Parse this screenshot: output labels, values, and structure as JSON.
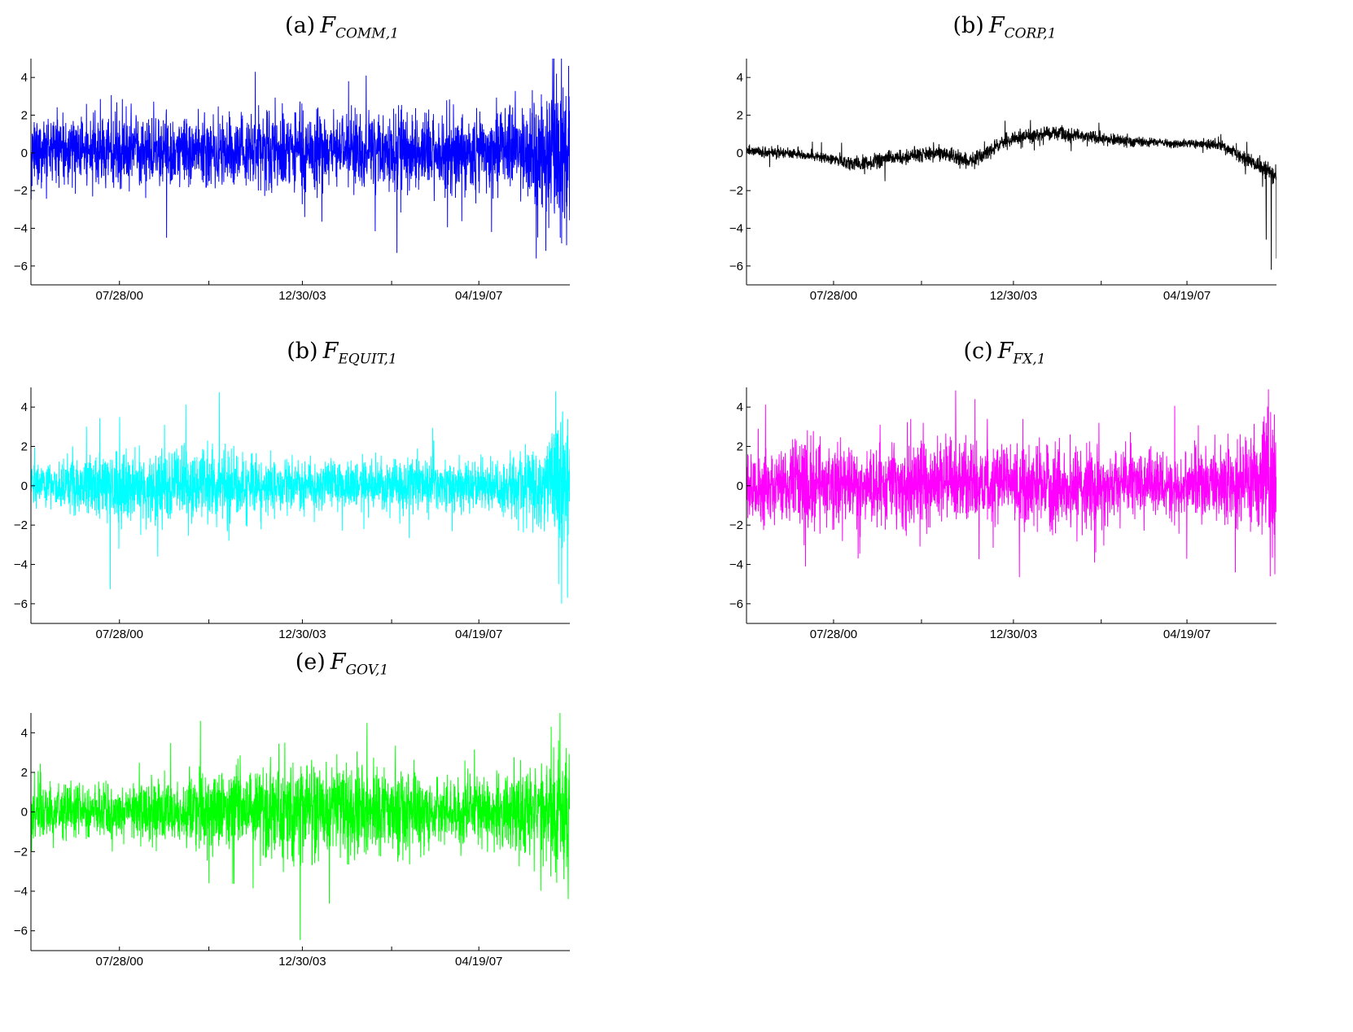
{
  "chart_data": [
    {
      "type": "line",
      "title_prefix": "(a)",
      "title_symbol": "F",
      "title_subscript": "COMM,1",
      "series_color": "#0000ff",
      "ylim": [
        -7,
        5
      ],
      "y_ticks": [
        4,
        2,
        0,
        -2,
        -4,
        -6
      ],
      "x_tick_labels": [
        "07/28/00",
        "12/30/03",
        "04/19/07"
      ],
      "x": {
        "start": "1998-12-01",
        "end": "2008-12-31",
        "unit": "date"
      },
      "profile": {
        "base": [
          0.1,
          0.1,
          0.1,
          0.1,
          0.1,
          0.1,
          0.1,
          0.1,
          0.1,
          0.1,
          0.1,
          0.1,
          0.1,
          0.1,
          0.1,
          0.1,
          0.1,
          0.1,
          0.1,
          0.1
        ],
        "noise": [
          1.0,
          0.9,
          0.9,
          0.9,
          0.9,
          0.9,
          0.95,
          1.0,
          1.0,
          1.0,
          1.0,
          1.0,
          1.0,
          1.0,
          1.0,
          1.05,
          1.1,
          1.2,
          1.7,
          2.4
        ]
      },
      "annotated_values": [
        {
          "date": "1999-12-15",
          "y": 2.6
        },
        {
          "date": "2001-06-15",
          "y": -4.5
        },
        {
          "date": "2004-01-15",
          "y": -3.4
        },
        {
          "date": "2004-11-10",
          "y": 3.8
        },
        {
          "date": "2005-03-10",
          "y": 4.1
        },
        {
          "date": "2007-07-15",
          "y": -4.2
        },
        {
          "date": "2008-05-15",
          "y": -5.6
        },
        {
          "date": "2008-07-20",
          "y": -5.2
        },
        {
          "date": "2008-10-01",
          "y": 4.2
        },
        {
          "date": "2008-11-05",
          "y": -4.8
        }
      ]
    },
    {
      "type": "line",
      "title_prefix": "(b)",
      "title_symbol": "F",
      "title_subscript": "CORP,1",
      "series_color": "#000000",
      "ylim": [
        -7,
        5
      ],
      "y_ticks": [
        4,
        2,
        0,
        -2,
        -4,
        -6
      ],
      "x_tick_labels": [
        "07/28/00",
        "12/30/03",
        "04/19/07"
      ],
      "x": {
        "start": "1998-12-01",
        "end": "2008-12-31",
        "unit": "date"
      },
      "profile": {
        "base": [
          0.1,
          0.0,
          -0.1,
          -0.3,
          -0.6,
          -0.3,
          -0.1,
          0.0,
          -0.5,
          0.4,
          0.9,
          1.1,
          0.9,
          0.7,
          0.6,
          0.5,
          0.5,
          0.4,
          -0.4,
          -1.2
        ],
        "noise": [
          0.15,
          0.15,
          0.15,
          0.15,
          0.2,
          0.2,
          0.2,
          0.2,
          0.2,
          0.2,
          0.2,
          0.2,
          0.15,
          0.15,
          0.12,
          0.12,
          0.12,
          0.15,
          0.2,
          0.25
        ]
      },
      "annotated_values": [
        {
          "date": "2001-07-20",
          "y": -1.5
        },
        {
          "date": "2003-11-01",
          "y": 1.7
        },
        {
          "date": "2005-08-15",
          "y": 1.6
        },
        {
          "date": "2007-12-10",
          "y": 1.0
        },
        {
          "date": "2008-09-25",
          "y": -1.8
        },
        {
          "date": "2008-10-20",
          "y": -4.6
        },
        {
          "date": "2008-11-25",
          "y": -6.2
        },
        {
          "date": "2008-12-31",
          "y": -5.6
        }
      ]
    },
    {
      "type": "line",
      "title_prefix": "(b)",
      "title_symbol": "F",
      "title_subscript": "EQUIT,1",
      "series_color": "#00ffff",
      "ylim": [
        -7,
        5
      ],
      "y_ticks": [
        4,
        2,
        0,
        -2,
        -4,
        -6
      ],
      "x_tick_labels": [
        "07/28/00",
        "12/30/03",
        "04/19/07"
      ],
      "x": {
        "start": "1998-12-01",
        "end": "2008-12-31",
        "unit": "date"
      },
      "profile": {
        "base": [
          0,
          0,
          0,
          0,
          0,
          0,
          0,
          0,
          0,
          0,
          0,
          0,
          0,
          0,
          0,
          0,
          0,
          0,
          0,
          0
        ],
        "noise": [
          0.6,
          0.6,
          0.8,
          0.9,
          0.9,
          0.9,
          0.9,
          0.9,
          0.8,
          0.7,
          0.6,
          0.6,
          0.6,
          0.7,
          0.65,
          0.6,
          0.6,
          0.8,
          1.0,
          2.2
        ]
      },
      "annotated_values": [
        {
          "date": "1999-12-15",
          "y": 3.0
        },
        {
          "date": "2001-06-01",
          "y": 3.1
        },
        {
          "date": "2000-12-20",
          "y": -2.5
        },
        {
          "date": "2002-08-15",
          "y": -2.8
        },
        {
          "date": "2006-06-15",
          "y": 2.3
        },
        {
          "date": "2008-09-25",
          "y": 4.8
        },
        {
          "date": "2008-10-15",
          "y": -5.0
        },
        {
          "date": "2008-11-05",
          "y": -6.0
        },
        {
          "date": "2008-12-15",
          "y": -5.7
        }
      ]
    },
    {
      "type": "line",
      "title_prefix": "(c)",
      "title_symbol": "F",
      "title_subscript": "FX,1",
      "series_color": "#ff00ff",
      "ylim": [
        -7,
        5
      ],
      "y_ticks": [
        4,
        2,
        0,
        -2,
        -4,
        -6
      ],
      "x_tick_labels": [
        "07/28/00",
        "12/30/03",
        "04/19/07"
      ],
      "x": {
        "start": "1998-12-01",
        "end": "2008-12-31",
        "unit": "date"
      },
      "profile": {
        "base": [
          0,
          0,
          0,
          0,
          0,
          0,
          0,
          0,
          0,
          0,
          0,
          0,
          0,
          0,
          0,
          0,
          0,
          0,
          0,
          0
        ],
        "noise": [
          0.9,
          0.9,
          1.1,
          1.0,
          0.95,
          1.0,
          1.05,
          1.05,
          1.05,
          1.0,
          1.0,
          1.0,
          1.0,
          0.9,
          0.85,
          0.85,
          0.9,
          0.95,
          1.2,
          1.9
        ]
      },
      "annotated_values": [
        {
          "date": "1999-02-20",
          "y": 2.9
        },
        {
          "date": "2000-01-15",
          "y": -4.1
        },
        {
          "date": "2001-01-15",
          "y": -3.7
        },
        {
          "date": "2002-01-15",
          "y": 3.4
        },
        {
          "date": "2003-07-01",
          "y": 3.4
        },
        {
          "date": "2005-07-15",
          "y": -3.9
        },
        {
          "date": "2005-08-15",
          "y": 3.2
        },
        {
          "date": "2008-03-20",
          "y": -4.4
        },
        {
          "date": "2008-11-05",
          "y": 4.9
        },
        {
          "date": "2008-12-20",
          "y": -4.5
        }
      ]
    },
    {
      "type": "line",
      "title_prefix": "(e)",
      "title_symbol": "F",
      "title_subscript": "GOV,1",
      "series_color": "#00ff00",
      "ylim": [
        -7,
        5
      ],
      "y_ticks": [
        4,
        2,
        0,
        -2,
        -4,
        -6
      ],
      "x_tick_labels": [
        "07/28/00",
        "12/30/03",
        "04/19/07"
      ],
      "x": {
        "start": "1998-12-01",
        "end": "2008-12-31",
        "unit": "date"
      },
      "profile": {
        "base": [
          0,
          0,
          0,
          0,
          0,
          0,
          0,
          0,
          0,
          0,
          0,
          0,
          0,
          0,
          0,
          0,
          0,
          0,
          0,
          0
        ],
        "noise": [
          0.8,
          0.75,
          0.7,
          0.7,
          0.75,
          0.85,
          0.95,
          1.1,
          1.25,
          1.2,
          1.2,
          1.1,
          1.1,
          0.95,
          0.95,
          0.9,
          0.85,
          1.0,
          1.3,
          1.6
        ]
      },
      "annotated_values": [
        {
          "date": "2002-02-01",
          "y": 4.6
        },
        {
          "date": "2002-04-01",
          "y": -3.6
        },
        {
          "date": "2003-09-01",
          "y": 3.5
        },
        {
          "date": "2005-03-15",
          "y": 4.5
        },
        {
          "date": "2008-05-01",
          "y": -3.0
        },
        {
          "date": "2008-08-25",
          "y": 4.3
        },
        {
          "date": "2008-11-20",
          "y": -3.4
        },
        {
          "date": "2008-12-20",
          "y": -4.4
        }
      ]
    }
  ]
}
